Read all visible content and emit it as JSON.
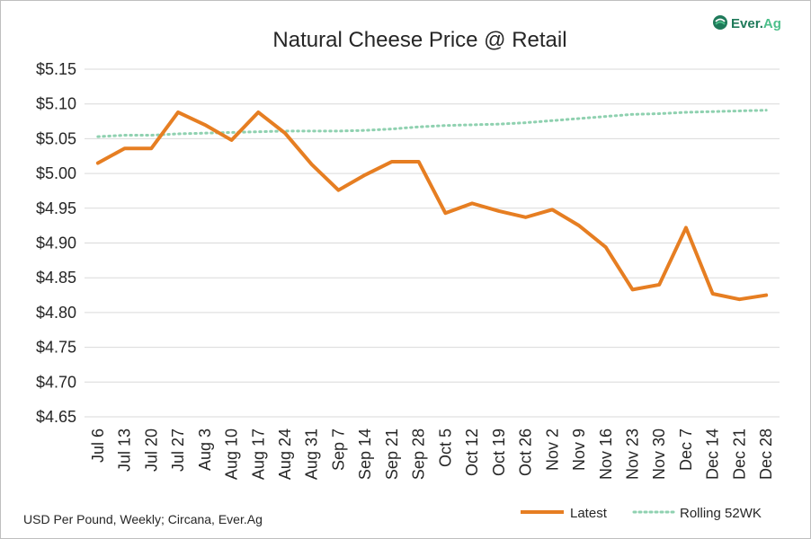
{
  "logo": {
    "text_main": "Ever.",
    "text_accent": "Ag",
    "color_main": "#1f7a5a",
    "color_accent": "#4cbf8a"
  },
  "source_note": "USD Per Pound, Weekly; Circana, Ever.Ag",
  "chart_data": {
    "type": "line",
    "title": "Natural Cheese Price @ Retail",
    "xlabel": "",
    "ylabel": "",
    "ylim": [
      4.65,
      5.15
    ],
    "ytick_step": 0.05,
    "ytick_labels": [
      "$4.65",
      "$4.70",
      "$4.75",
      "$4.80",
      "$4.85",
      "$4.90",
      "$4.95",
      "$5.00",
      "$5.05",
      "$5.10",
      "$5.15"
    ],
    "grid": true,
    "legend_position": "bottom-right",
    "categories": [
      "Jul 6",
      "Jul 13",
      "Jul 20",
      "Jul 27",
      "Aug 3",
      "Aug 10",
      "Aug 17",
      "Aug 24",
      "Aug 31",
      "Sep 7",
      "Sep 14",
      "Sep 21",
      "Sep 28",
      "Oct 5",
      "Oct 12",
      "Oct 19",
      "Oct 26",
      "Nov 2",
      "Nov 9",
      "Nov 16",
      "Nov 23",
      "Nov 30",
      "Dec 7",
      "Dec 14",
      "Dec 21",
      "Dec 28"
    ],
    "series": [
      {
        "name": "Latest",
        "color": "#e67e22",
        "style": "solid",
        "values": [
          5.015,
          5.036,
          5.036,
          5.088,
          5.07,
          5.048,
          5.088,
          5.058,
          5.013,
          4.976,
          4.998,
          5.017,
          5.017,
          4.943,
          4.957,
          4.946,
          4.937,
          4.948,
          4.925,
          4.894,
          4.833,
          4.84,
          4.922,
          4.827,
          4.819,
          4.825
        ]
      },
      {
        "name": "Rolling 52WK",
        "color": "#8fd1b0",
        "style": "dotted",
        "values": [
          5.053,
          5.055,
          5.055,
          5.057,
          5.058,
          5.059,
          5.06,
          5.061,
          5.061,
          5.061,
          5.062,
          5.064,
          5.067,
          5.069,
          5.07,
          5.071,
          5.073,
          5.076,
          5.079,
          5.082,
          5.085,
          5.086,
          5.088,
          5.089,
          5.09,
          5.091
        ]
      }
    ]
  }
}
